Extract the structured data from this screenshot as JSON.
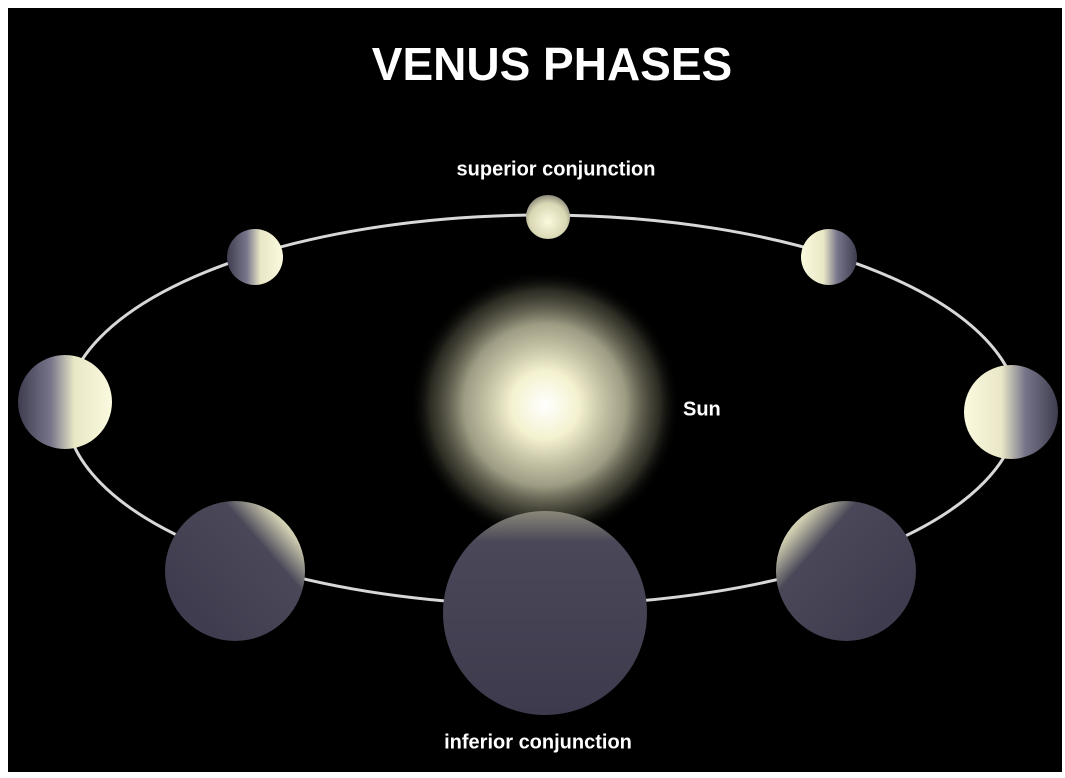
{
  "title": "VENUS PHASES",
  "labels": {
    "superior": "superior conjunction",
    "sun": "Sun",
    "inferior": "inferior conjunction"
  }
}
